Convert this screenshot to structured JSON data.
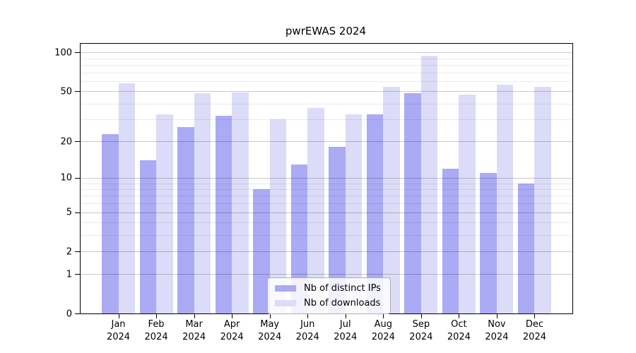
{
  "chart_data": {
    "type": "bar",
    "title": "pwrEWAS 2024",
    "categories": [
      "Jan 2024",
      "Feb 2024",
      "Mar 2024",
      "Apr 2024",
      "May 2024",
      "Jun 2024",
      "Jul 2024",
      "Aug 2024",
      "Sep 2024",
      "Oct 2024",
      "Nov 2024",
      "Dec 2024"
    ],
    "x_tick_months": [
      "Jan",
      "Feb",
      "Mar",
      "Apr",
      "May",
      "Jun",
      "Jul",
      "Aug",
      "Sep",
      "Oct",
      "Nov",
      "Dec"
    ],
    "x_tick_year": "2024",
    "series": [
      {
        "name": "Nb of distinct IPs",
        "color": "#aaaaf5",
        "values": [
          23,
          14,
          26,
          32,
          8,
          13,
          18,
          33,
          48,
          12,
          11,
          9
        ]
      },
      {
        "name": "Nb of downloads",
        "color": "#dcdcf8",
        "values": [
          58,
          33,
          48,
          49,
          30,
          37,
          33,
          54,
          94,
          47,
          56,
          54
        ]
      }
    ],
    "xlabel": "",
    "ylabel": "",
    "yscale": "log1p",
    "yticks": [
      0,
      1,
      2,
      5,
      10,
      20,
      50,
      100
    ],
    "minor_yticks": [
      3,
      4,
      6,
      7,
      8,
      9,
      30,
      40,
      60,
      70,
      80,
      90
    ],
    "ylim": [
      0,
      117
    ],
    "grid": true,
    "grid_on_top_of_bars": true,
    "legend_position": "inside-bottom-center",
    "colors": {
      "background": "#ffffff",
      "spine": "#000000",
      "major_grid": "#c9c9c9",
      "minor_grid": "#ebebeb"
    }
  }
}
